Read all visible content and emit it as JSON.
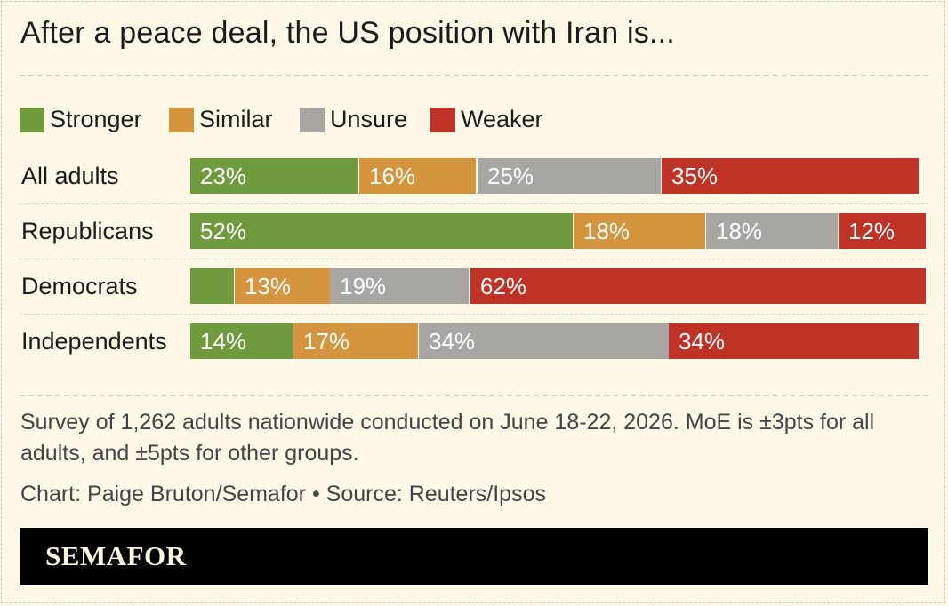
{
  "title": "After a peace deal, the US position with Iran is...",
  "colors": {
    "stronger": "#6f9a3d",
    "similar": "#d4953e",
    "unsure": "#a7a6a2",
    "weaker": "#bf3326"
  },
  "legend": [
    {
      "key": "stronger",
      "label": "Stronger"
    },
    {
      "key": "similar",
      "label": "Similar"
    },
    {
      "key": "unsure",
      "label": "Unsure"
    },
    {
      "key": "weaker",
      "label": "Weaker"
    }
  ],
  "chart_data": {
    "type": "bar",
    "orientation": "horizontal",
    "stacked": true,
    "categories": [
      "All adults",
      "Republicans",
      "Democrats",
      "Independents"
    ],
    "series": [
      {
        "name": "Stronger",
        "values": [
          23,
          52,
          6,
          14
        ],
        "labels": [
          "23%",
          "52%",
          "",
          "14%"
        ]
      },
      {
        "name": "Similar",
        "values": [
          16,
          18,
          13,
          17
        ],
        "labels": [
          "16%",
          "18%",
          "13%",
          "17%"
        ]
      },
      {
        "name": "Unsure",
        "values": [
          25,
          18,
          19,
          34
        ],
        "labels": [
          "25%",
          "18%",
          "19%",
          "34%"
        ]
      },
      {
        "name": "Weaker",
        "values": [
          35,
          12,
          62,
          34
        ],
        "labels": [
          "35%",
          "12%",
          "62%",
          "34%"
        ]
      }
    ],
    "xlim": [
      0,
      100
    ],
    "legend_position": "top-left",
    "grid": false
  },
  "note": "Survey of 1,262 adults nationwide conducted on June 18-22, 2026. MoE is ±3pts for all adults, and ±5pts for other groups.",
  "credit": "Chart: Paige Bruton/Semafor • Source: Reuters/Ipsos",
  "footer": {
    "brand": "SEMAFOR"
  }
}
